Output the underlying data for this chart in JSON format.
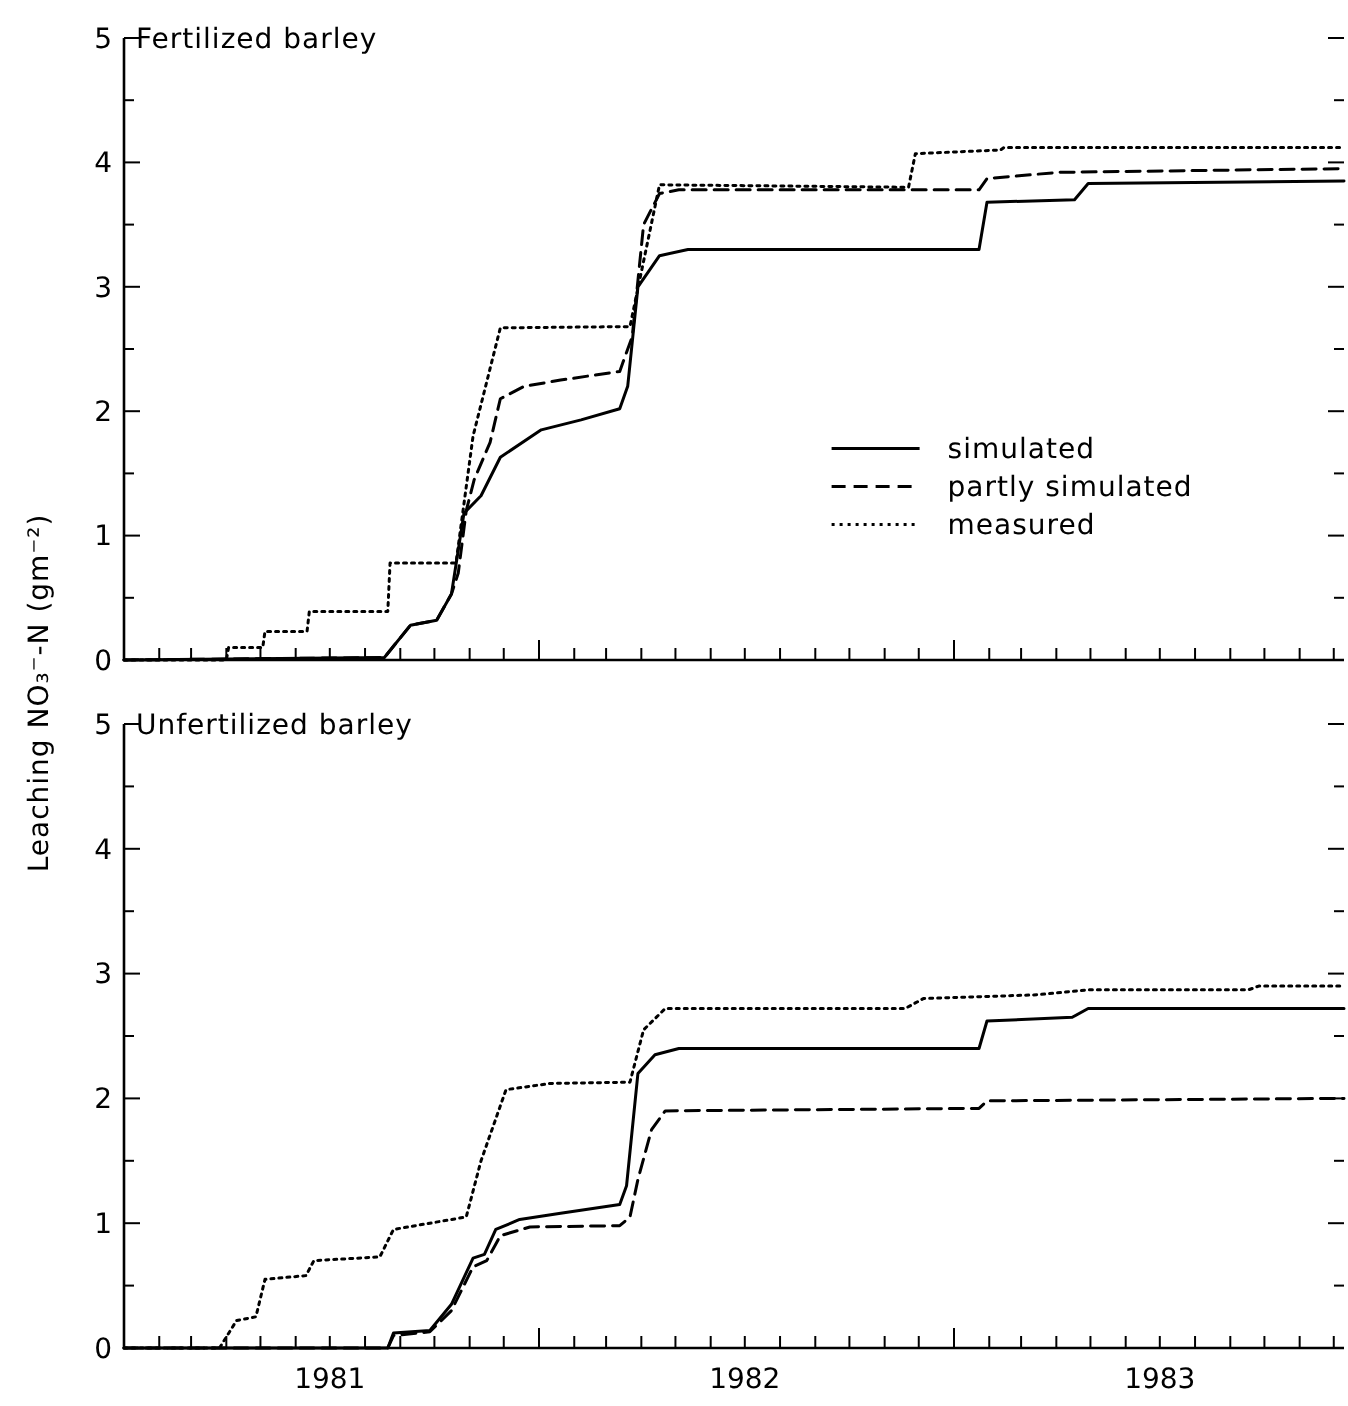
{
  "chart_data": [
    {
      "type": "line",
      "title": "Fertilized barley",
      "ylabel": "Leaching NO₃⁻-N (gm⁻²)",
      "legend": "right",
      "tick_labels": "y",
      "xlim": [
        "1981-01-01",
        "1983-12-10"
      ],
      "ylim": [
        0,
        5
      ],
      "yticks": [
        0,
        {
          "value": 0.5,
          "label": null
        },
        1,
        {
          "value": 1.5,
          "label": null
        },
        2,
        {
          "value": 2.5,
          "label": null
        },
        3,
        {
          "value": 3.5,
          "label": null
        },
        4,
        {
          "value": 4.5,
          "label": null
        },
        5
      ],
      "xticks": [
        {
          "value": "1981-02-01",
          "label": null
        },
        {
          "value": "1981-03-01",
          "label": null
        },
        {
          "value": "1981-04-01",
          "label": null
        },
        {
          "value": "1981-05-01",
          "label": null
        },
        {
          "value": "1981-06-01",
          "label": null
        },
        {
          "value": "1981-07-01",
          "label": null
        },
        {
          "value": "1981-08-01",
          "label": null
        },
        {
          "value": "1981-09-01",
          "label": null
        },
        {
          "value": "1981-10-01",
          "label": null
        },
        {
          "value": "1981-11-01",
          "label": null
        },
        {
          "value": "1981-12-01",
          "label": null
        },
        {
          "value": "1982-01-01",
          "label": null
        },
        {
          "value": "1982-02-01",
          "label": null
        },
        {
          "value": "1982-03-01",
          "label": null
        },
        {
          "value": "1982-04-01",
          "label": null
        },
        {
          "value": "1982-05-01",
          "label": null
        },
        {
          "value": "1982-06-01",
          "label": null
        },
        {
          "value": "1982-07-01",
          "label": null
        },
        {
          "value": "1982-08-01",
          "label": null
        },
        {
          "value": "1982-09-01",
          "label": null
        },
        {
          "value": "1982-10-01",
          "label": null
        },
        {
          "value": "1982-11-01",
          "label": null
        },
        {
          "value": "1982-12-01",
          "label": null
        },
        {
          "value": "1983-01-01",
          "label": null
        },
        {
          "value": "1983-02-01",
          "label": null
        },
        {
          "value": "1983-03-01",
          "label": null
        },
        {
          "value": "1983-04-01",
          "label": null
        },
        {
          "value": "1983-05-01",
          "label": null
        },
        {
          "value": "1983-06-01",
          "label": null
        },
        {
          "value": "1983-07-01",
          "label": null
        },
        {
          "value": "1983-08-01",
          "label": null
        },
        {
          "value": "1983-09-01",
          "label": null
        },
        {
          "value": "1983-10-01",
          "label": null
        },
        {
          "value": "1983-11-01",
          "label": null
        },
        {
          "value": "1983-12-01",
          "label": null
        }
      ],
      "series": [
        {
          "name": "simulated",
          "color": "#000000",
          "line_style": "solid",
          "x": [
            "1981-01-01",
            "1981-08-18",
            "1981-09-10",
            "1981-10-03",
            "1981-10-16",
            "1981-10-27",
            "1981-11-11",
            "1981-11-28",
            "1982-01-03",
            "1982-02-07",
            "1982-03-13",
            "1982-03-20",
            "1982-03-29",
            "1982-04-17",
            "1982-05-12",
            "1983-01-23",
            "1983-01-30",
            "1983-04-17",
            "1983-04-29",
            "1983-12-10"
          ],
          "values": [
            0,
            0.02,
            0.28,
            0.32,
            0.53,
            1.18,
            1.32,
            1.63,
            1.85,
            1.93,
            2.02,
            2.2,
            3.0,
            3.25,
            3.3,
            3.3,
            3.68,
            3.7,
            3.83,
            3.85
          ]
        },
        {
          "name": "partly simulated",
          "color": "#000000",
          "line_style": "dashed",
          "x": [
            "1981-01-01",
            "1981-08-18",
            "1981-09-10",
            "1981-10-03",
            "1981-10-16",
            "1981-10-22",
            "1981-10-29",
            "1981-11-05",
            "1981-11-19",
            "1981-11-28",
            "1981-12-19",
            "1982-01-20",
            "1982-03-13",
            "1982-03-24",
            "1982-04-03",
            "1982-04-17",
            "1982-05-04",
            "1983-01-23",
            "1983-01-30",
            "1983-04-03",
            "1983-12-10"
          ],
          "values": [
            0,
            0.02,
            0.28,
            0.32,
            0.53,
            0.7,
            1.2,
            1.45,
            1.75,
            2.1,
            2.2,
            2.25,
            2.32,
            2.6,
            3.5,
            3.75,
            3.78,
            3.78,
            3.87,
            3.92,
            3.95
          ]
        },
        {
          "name": "measured",
          "color": "#000000",
          "line_style": "dotted",
          "x": [
            "1981-01-01",
            "1981-04-01",
            "1981-04-03",
            "1981-05-03",
            "1981-05-05",
            "1981-06-11",
            "1981-06-13",
            "1981-08-21",
            "1981-08-23",
            "1981-10-20",
            "1981-11-04",
            "1981-11-28",
            "1982-03-22",
            "1982-04-17",
            "1982-11-22",
            "1982-11-28",
            "1983-02-11",
            "1983-02-14",
            "1983-12-10"
          ],
          "values": [
            0,
            0,
            0.1,
            0.1,
            0.23,
            0.23,
            0.39,
            0.39,
            0.78,
            0.78,
            1.8,
            2.67,
            2.68,
            3.82,
            3.8,
            4.07,
            4.1,
            4.12,
            4.12
          ]
        }
      ]
    },
    {
      "type": "line",
      "title": "Unfertilized barley",
      "xlim": [
        "1981-01-01",
        "1983-12-10"
      ],
      "ylim": [
        0,
        5
      ],
      "yticks": [
        0,
        {
          "value": 0.5,
          "label": null
        },
        1,
        {
          "value": 1.5,
          "label": null
        },
        2,
        {
          "value": 2.5,
          "label": null
        },
        3,
        {
          "value": 3.5,
          "label": null
        },
        4,
        {
          "value": 4.5,
          "label": null
        },
        5
      ],
      "xticks": [
        {
          "value": "1981-02-01",
          "label": null
        },
        {
          "value": "1981-03-01",
          "label": null
        },
        {
          "value": "1981-04-01",
          "label": null
        },
        {
          "value": "1981-05-01",
          "label": null
        },
        {
          "value": "1981-06-01",
          "label": null
        },
        {
          "value": "1981-07-01",
          "label": "1981"
        },
        {
          "value": "1981-08-01",
          "label": null
        },
        {
          "value": "1981-09-01",
          "label": null
        },
        {
          "value": "1981-10-01",
          "label": null
        },
        {
          "value": "1981-11-01",
          "label": null
        },
        {
          "value": "1981-12-01",
          "label": null
        },
        {
          "value": "1982-01-01",
          "label": null
        },
        {
          "value": "1982-02-01",
          "label": null
        },
        {
          "value": "1982-03-01",
          "label": null
        },
        {
          "value": "1982-04-01",
          "label": null
        },
        {
          "value": "1982-05-01",
          "label": null
        },
        {
          "value": "1982-06-01",
          "label": null
        },
        {
          "value": "1982-07-01",
          "label": "1982"
        },
        {
          "value": "1982-08-01",
          "label": null
        },
        {
          "value": "1982-09-01",
          "label": null
        },
        {
          "value": "1982-10-01",
          "label": null
        },
        {
          "value": "1982-11-01",
          "label": null
        },
        {
          "value": "1982-12-01",
          "label": null
        },
        {
          "value": "1983-01-01",
          "label": null
        },
        {
          "value": "1983-02-01",
          "label": null
        },
        {
          "value": "1983-03-01",
          "label": null
        },
        {
          "value": "1983-04-01",
          "label": null
        },
        {
          "value": "1983-05-01",
          "label": null
        },
        {
          "value": "1983-06-01",
          "label": null
        },
        {
          "value": "1983-07-01",
          "label": "1983"
        },
        {
          "value": "1983-08-01",
          "label": null
        },
        {
          "value": "1983-09-01",
          "label": null
        },
        {
          "value": "1983-10-01",
          "label": null
        },
        {
          "value": "1983-11-01",
          "label": null
        },
        {
          "value": "1983-12-01",
          "label": null
        }
      ],
      "series": [
        {
          "color": "#000000",
          "line_style": "solid",
          "x": [
            "1981-01-01",
            "1981-08-21",
            "1981-08-26",
            "1981-09-27",
            "1981-10-16",
            "1981-11-04",
            "1981-11-14",
            "1981-11-24",
            "1981-12-15",
            "1982-01-20",
            "1982-03-13",
            "1982-03-19",
            "1982-03-29",
            "1982-04-13",
            "1982-05-04",
            "1983-01-23",
            "1983-01-30",
            "1983-04-15",
            "1983-04-29",
            "1983-12-10"
          ],
          "values": [
            0,
            0,
            0.12,
            0.14,
            0.35,
            0.72,
            0.75,
            0.95,
            1.03,
            1.08,
            1.15,
            1.3,
            2.2,
            2.35,
            2.4,
            2.4,
            2.62,
            2.65,
            2.72,
            2.72
          ]
        },
        {
          "color": "#000000",
          "line_style": "dashed",
          "x": [
            "1981-01-01",
            "1981-08-21",
            "1981-08-26",
            "1981-09-27",
            "1981-10-16",
            "1981-11-04",
            "1981-11-16",
            "1981-11-28",
            "1981-12-24",
            "1982-03-13",
            "1982-03-22",
            "1982-03-29",
            "1982-04-10",
            "1982-04-22",
            "1983-01-23",
            "1983-01-30",
            "1983-12-10"
          ],
          "values": [
            0,
            0,
            0.1,
            0.13,
            0.3,
            0.65,
            0.7,
            0.9,
            0.97,
            0.98,
            1.05,
            1.35,
            1.75,
            1.9,
            1.92,
            1.98,
            2.0
          ]
        },
        {
          "color": "#000000",
          "line_style": "dotted",
          "x": [
            "1981-01-01",
            "1981-03-26",
            "1981-04-10",
            "1981-04-27",
            "1981-05-05",
            "1981-06-10",
            "1981-06-17",
            "1981-08-14",
            "1981-08-26",
            "1981-09-27",
            "1981-10-29",
            "1981-11-11",
            "1981-12-03",
            "1982-01-11",
            "1982-03-22",
            "1982-04-03",
            "1982-04-22",
            "1982-11-19",
            "1982-12-05",
            "1983-03-15",
            "1983-04-29",
            "1983-09-17",
            "1983-09-26",
            "1983-12-10"
          ],
          "values": [
            0,
            0,
            0.22,
            0.25,
            0.55,
            0.58,
            0.7,
            0.73,
            0.95,
            1.0,
            1.05,
            1.5,
            2.07,
            2.12,
            2.13,
            2.55,
            2.72,
            2.72,
            2.8,
            2.83,
            2.87,
            2.87,
            2.9,
            2.9
          ]
        }
      ]
    }
  ]
}
